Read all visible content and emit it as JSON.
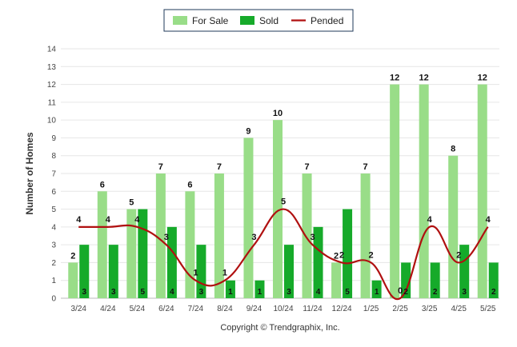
{
  "chart_data": {
    "type": "bar",
    "title": "",
    "ylabel": "Number of Homes",
    "xlabel": "",
    "ylim": [
      0,
      14
    ],
    "yticks": [
      0,
      1,
      2,
      3,
      4,
      5,
      6,
      7,
      8,
      9,
      10,
      11,
      12,
      13,
      14
    ],
    "categories": [
      "3/24",
      "4/24",
      "5/24",
      "6/24",
      "7/24",
      "8/24",
      "9/24",
      "10/24",
      "11/24",
      "12/24",
      "1/25",
      "2/25",
      "3/25",
      "4/25",
      "5/25"
    ],
    "series": [
      {
        "name": "For Sale",
        "kind": "bar",
        "color": "#99dd88",
        "values": [
          2,
          6,
          5,
          7,
          6,
          7,
          9,
          10,
          7,
          2,
          7,
          12,
          12,
          8,
          12
        ]
      },
      {
        "name": "Sold",
        "kind": "bar",
        "color": "#16aa2a",
        "values": [
          3,
          3,
          5,
          4,
          3,
          1,
          1,
          3,
          4,
          5,
          1,
          2,
          2,
          3,
          2
        ]
      },
      {
        "name": "Pended",
        "kind": "line",
        "color": "#b01010",
        "values": [
          4,
          4,
          4,
          3,
          1,
          1,
          3,
          5,
          3,
          2,
          2,
          0,
          4,
          2,
          4
        ]
      }
    ],
    "legend": "top-center",
    "grid": true
  },
  "footer": {
    "copyright": "Copyright © Trendgraphix, Inc."
  }
}
